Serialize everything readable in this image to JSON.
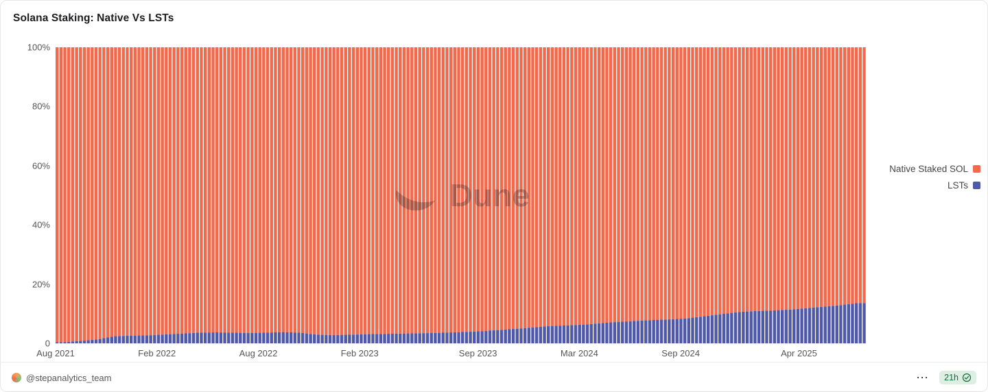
{
  "watermark": {
    "text": "Dune"
  },
  "footer": {
    "author_handle": "@stepanalytics_team",
    "more_icon_glyph": "⋯",
    "freshness": "21h"
  },
  "chart_data": {
    "type": "bar",
    "variant": "100-percent-stacked-weekly-bars",
    "title": "Solana Staking: Native Vs LSTs",
    "xlabel": "",
    "ylabel": "",
    "ylim": [
      0,
      100
    ],
    "grid": false,
    "legend_position": "right",
    "y_ticks": [
      "100%",
      "80%",
      "60%",
      "40%",
      "20%",
      "0"
    ],
    "x_ticks": [
      {
        "label": "Aug 2021",
        "m": 0
      },
      {
        "label": "Feb 2022",
        "m": 6
      },
      {
        "label": "Aug 2022",
        "m": 12
      },
      {
        "label": "Feb 2023",
        "m": 18
      },
      {
        "label": "Sep 2023",
        "m": 25
      },
      {
        "label": "Mar 2024",
        "m": 31
      },
      {
        "label": "Sep 2024",
        "m": 37
      },
      {
        "label": "Apr 2025",
        "m": 44
      }
    ],
    "series": [
      {
        "name": "Native Staked SOL",
        "color": "#F2694C",
        "note": "share = 100 - LSTs share"
      },
      {
        "name": "LSTs",
        "color": "#5058A8"
      }
    ],
    "months": [
      "2021-08",
      "2021-09",
      "2021-10",
      "2021-11",
      "2021-12",
      "2022-01",
      "2022-02",
      "2022-03",
      "2022-04",
      "2022-05",
      "2022-06",
      "2022-07",
      "2022-08",
      "2022-09",
      "2022-10",
      "2022-11",
      "2022-12",
      "2023-01",
      "2023-02",
      "2023-03",
      "2023-04",
      "2023-05",
      "2023-06",
      "2023-07",
      "2023-08",
      "2023-09",
      "2023-10",
      "2023-11",
      "2023-12",
      "2024-01",
      "2024-02",
      "2024-03",
      "2024-04",
      "2024-05",
      "2024-06",
      "2024-07",
      "2024-08",
      "2024-09",
      "2024-10",
      "2024-11",
      "2024-12",
      "2025-01",
      "2025-02",
      "2025-03",
      "2025-04",
      "2025-05",
      "2025-06",
      "2025-07"
    ],
    "lst_share_pct": [
      0.4,
      0.8,
      1.3,
      2.4,
      2.6,
      2.7,
      3.0,
      3.3,
      3.6,
      3.7,
      3.6,
      3.5,
      3.6,
      3.8,
      3.6,
      2.9,
      2.8,
      2.9,
      3.1,
      3.2,
      3.3,
      3.4,
      3.5,
      3.7,
      3.9,
      4.2,
      4.6,
      5.0,
      5.5,
      5.9,
      6.1,
      6.4,
      6.9,
      7.3,
      7.6,
      7.9,
      8.1,
      8.5,
      9.2,
      9.9,
      10.6,
      10.9,
      11.1,
      11.4,
      11.9,
      12.4,
      12.9,
      13.6
    ]
  }
}
